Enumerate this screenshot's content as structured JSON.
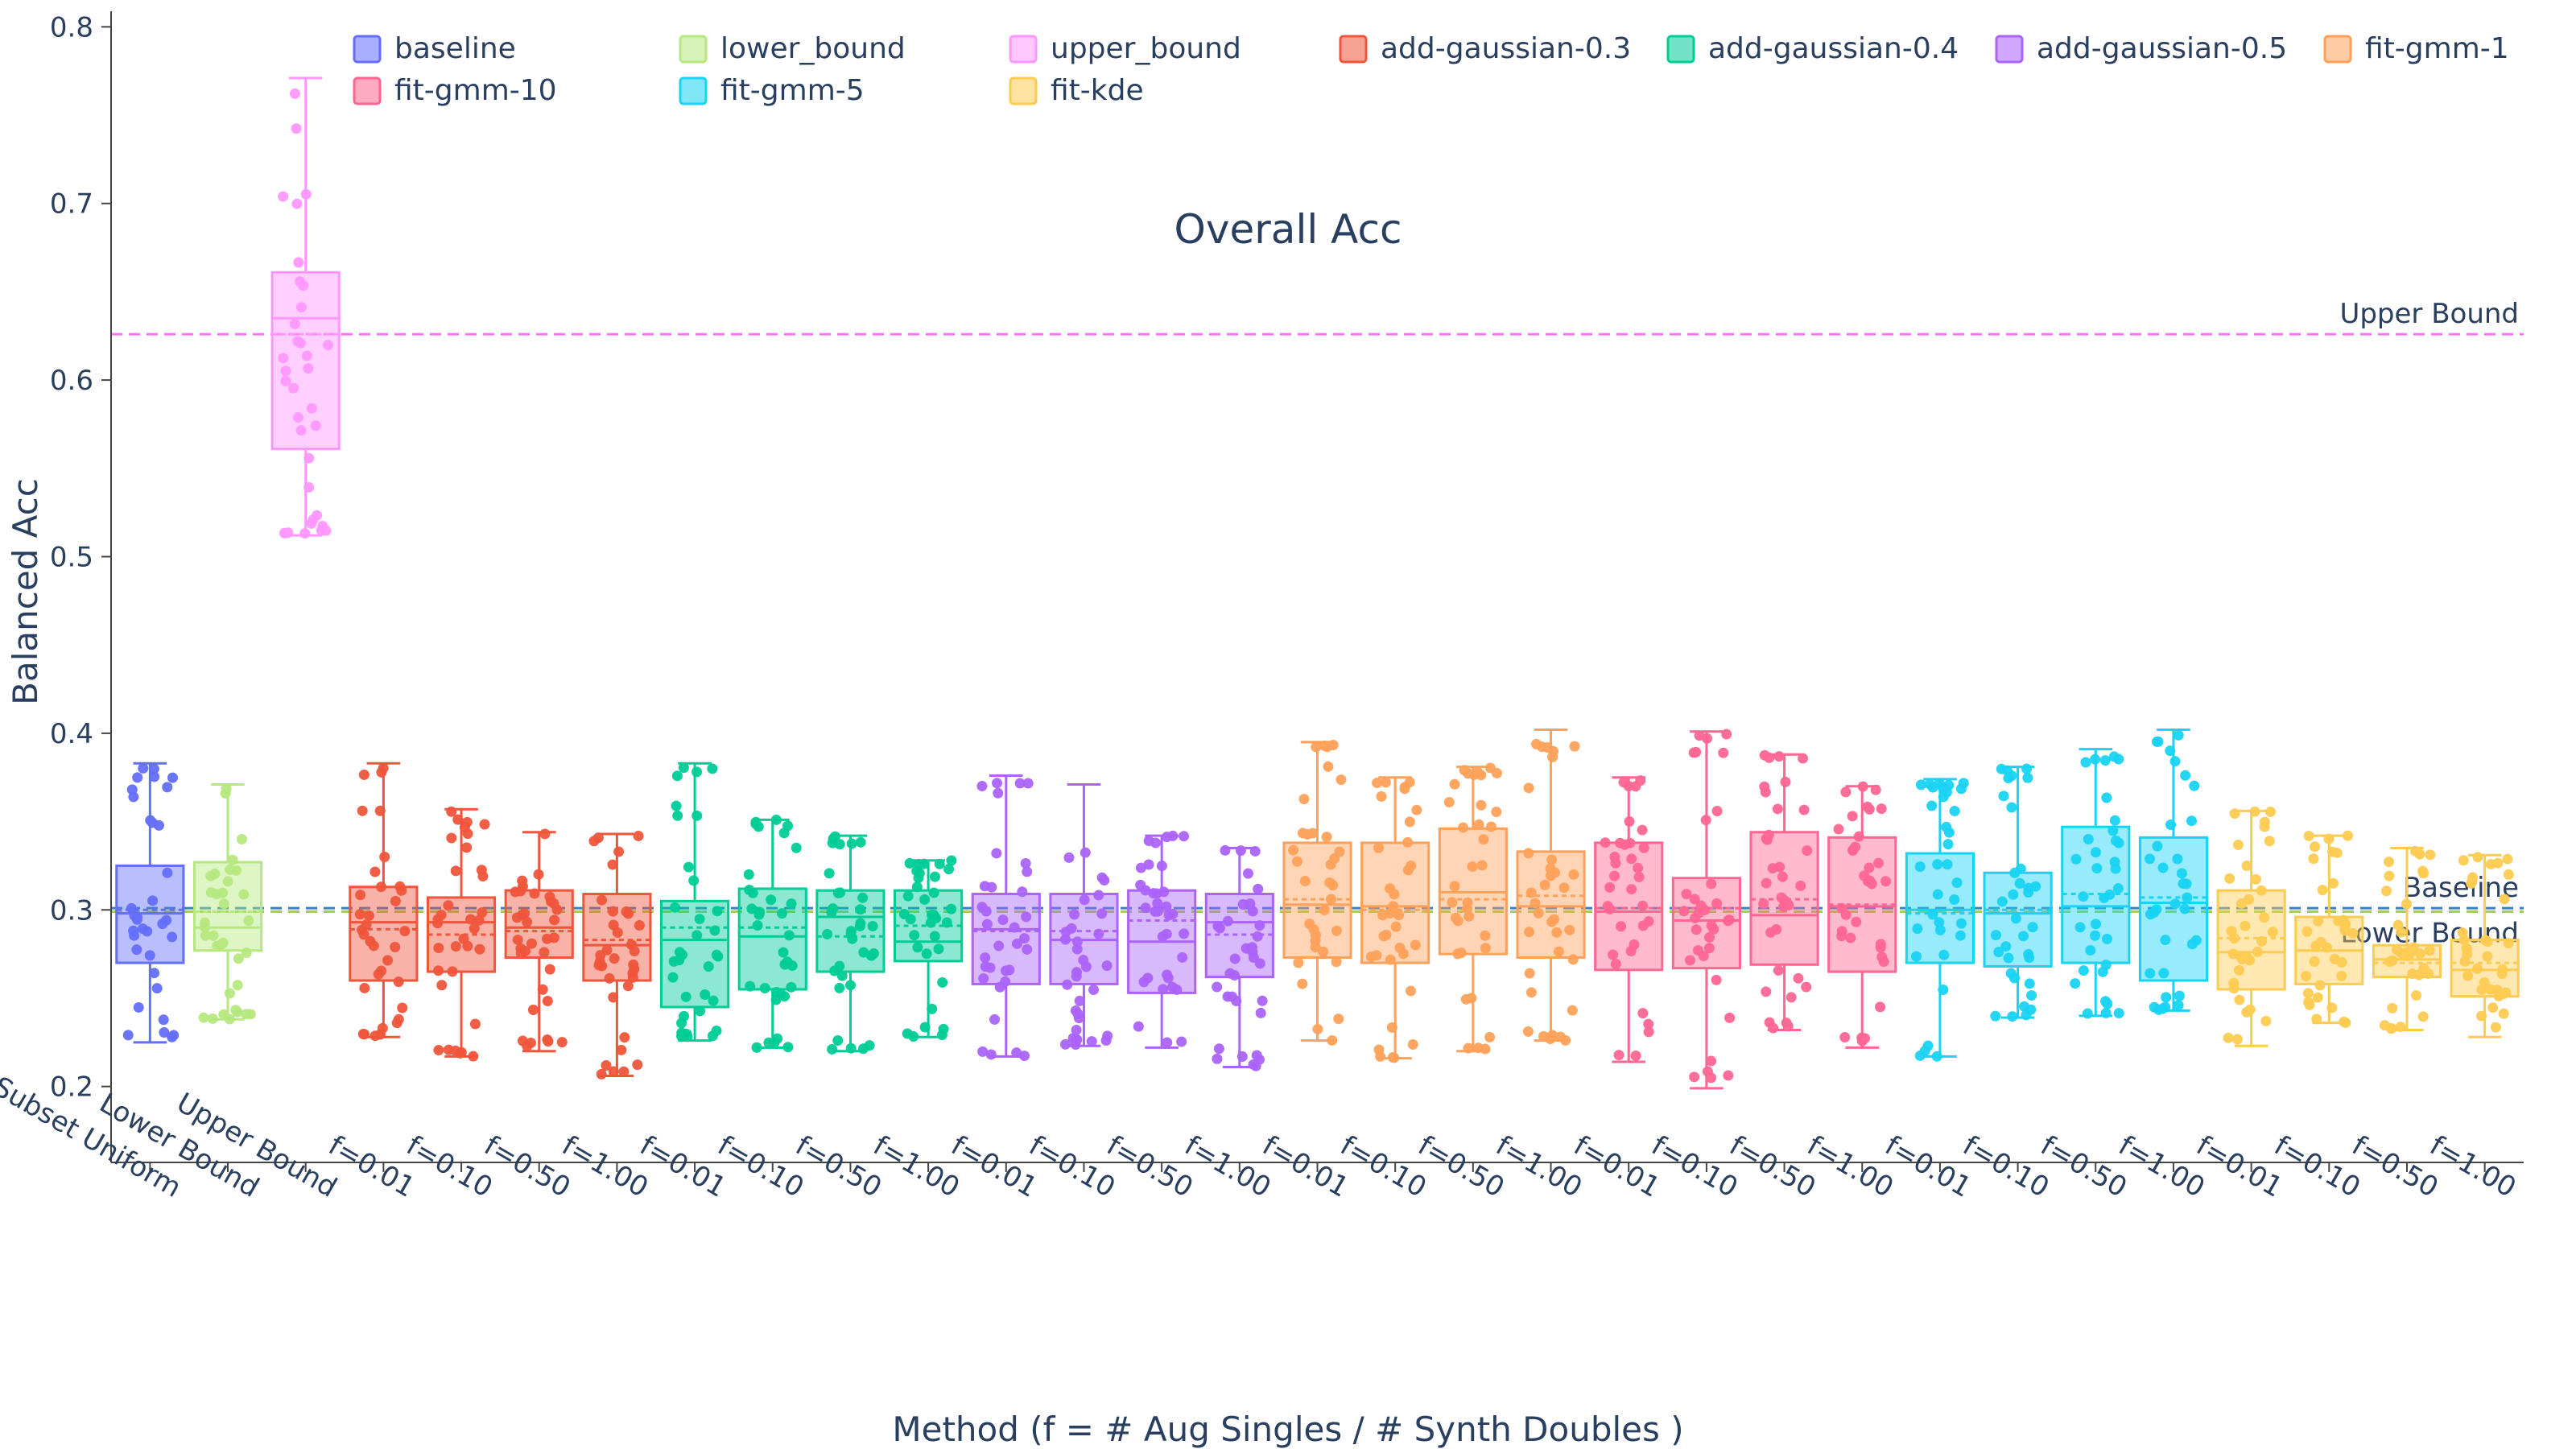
{
  "chart_data": {
    "type": "box",
    "title": "Overall Acc",
    "xlabel": "Method (f = # Aug Singles / # Synth Doubles )",
    "ylabel": "Balanced Acc",
    "ylim": [
      0.157,
      0.807
    ],
    "yticks": [
      0.2,
      0.3,
      0.4,
      0.5,
      0.6,
      0.7,
      0.8
    ],
    "grid": false,
    "legend_position": "top",
    "reference_lines": [
      {
        "label": "Upper Bound",
        "value": 0.626,
        "color": "#ff66ff"
      },
      {
        "label": "Baseline",
        "value": 0.301,
        "color": "#1f77b4"
      },
      {
        "label": "Lower Bound",
        "value": 0.299,
        "color": "#9acd32"
      }
    ],
    "categories": [
      "Baseline - Subset Uniform",
      "Lower Bound",
      "Upper Bound",
      "f=0.01",
      "f=0.10",
      "f=0.50",
      "f=1.00",
      "f=0.01",
      "f=0.10",
      "f=0.50",
      "f=1.00",
      "f=0.01",
      "f=0.10",
      "f=0.50",
      "f=1.00",
      "f=0.01",
      "f=0.10",
      "f=0.50",
      "f=1.00",
      "f=0.01",
      "f=0.10",
      "f=0.50",
      "f=1.00",
      "f=0.01",
      "f=0.10",
      "f=0.50",
      "f=1.00",
      "f=0.01",
      "f=0.10",
      "f=0.50",
      "f=1.00"
    ],
    "legend": [
      {
        "name": "baseline",
        "color": "#636efa"
      },
      {
        "name": "lower_bound",
        "color": "#b6e880"
      },
      {
        "name": "upper_bound",
        "color": "#ff97ff"
      },
      {
        "name": "add-gaussian-0.3",
        "color": "#ef553b"
      },
      {
        "name": "add-gaussian-0.4",
        "color": "#00cc96"
      },
      {
        "name": "add-gaussian-0.5",
        "color": "#ab63fa"
      },
      {
        "name": "fit-gmm-1",
        "color": "#ffa15a"
      },
      {
        "name": "fit-gmm-10",
        "color": "#ff6692"
      },
      {
        "name": "fit-gmm-5",
        "color": "#19d3f3"
      },
      {
        "name": "fit-kde",
        "color": "#fecb52"
      }
    ],
    "boxes": [
      {
        "series": "baseline",
        "min": 0.225,
        "q1": 0.27,
        "median": 0.298,
        "mean": 0.3,
        "q3": 0.325,
        "max": 0.383
      },
      {
        "series": "lower_bound",
        "min": 0.238,
        "q1": 0.277,
        "median": 0.29,
        "mean": 0.299,
        "q3": 0.327,
        "max": 0.371
      },
      {
        "series": "upper_bound",
        "min": 0.512,
        "q1": 0.561,
        "median": 0.635,
        "mean": 0.626,
        "q3": 0.661,
        "max": 0.771
      },
      {
        "series": "add-gaussian-0.3",
        "min": 0.228,
        "q1": 0.26,
        "median": 0.293,
        "mean": 0.289,
        "q3": 0.313,
        "max": 0.383
      },
      {
        "series": "add-gaussian-0.3",
        "min": 0.217,
        "q1": 0.265,
        "median": 0.293,
        "mean": 0.286,
        "q3": 0.307,
        "max": 0.357
      },
      {
        "series": "add-gaussian-0.3",
        "min": 0.22,
        "q1": 0.273,
        "median": 0.29,
        "mean": 0.288,
        "q3": 0.311,
        "max": 0.344
      },
      {
        "series": "add-gaussian-0.3",
        "min": 0.206,
        "q1": 0.26,
        "median": 0.28,
        "mean": 0.283,
        "q3": 0.309,
        "max": 0.343
      },
      {
        "series": "add-gaussian-0.4",
        "min": 0.226,
        "q1": 0.245,
        "median": 0.283,
        "mean": 0.29,
        "q3": 0.305,
        "max": 0.383
      },
      {
        "series": "add-gaussian-0.4",
        "min": 0.222,
        "q1": 0.255,
        "median": 0.285,
        "mean": 0.29,
        "q3": 0.312,
        "max": 0.351
      },
      {
        "series": "add-gaussian-0.4",
        "min": 0.22,
        "q1": 0.265,
        "median": 0.296,
        "mean": 0.285,
        "q3": 0.311,
        "max": 0.342
      },
      {
        "series": "add-gaussian-0.4",
        "min": 0.228,
        "q1": 0.271,
        "median": 0.282,
        "mean": 0.291,
        "q3": 0.311,
        "max": 0.328
      },
      {
        "series": "add-gaussian-0.5",
        "min": 0.217,
        "q1": 0.258,
        "median": 0.289,
        "mean": 0.288,
        "q3": 0.309,
        "max": 0.376
      },
      {
        "series": "add-gaussian-0.5",
        "min": 0.223,
        "q1": 0.258,
        "median": 0.283,
        "mean": 0.288,
        "q3": 0.309,
        "max": 0.371
      },
      {
        "series": "add-gaussian-0.5",
        "min": 0.222,
        "q1": 0.253,
        "median": 0.282,
        "mean": 0.294,
        "q3": 0.311,
        "max": 0.342
      },
      {
        "series": "add-gaussian-0.5",
        "min": 0.211,
        "q1": 0.262,
        "median": 0.293,
        "mean": 0.286,
        "q3": 0.309,
        "max": 0.335
      },
      {
        "series": "fit-gmm-1",
        "min": 0.226,
        "q1": 0.273,
        "median": 0.303,
        "mean": 0.306,
        "q3": 0.338,
        "max": 0.395
      },
      {
        "series": "fit-gmm-1",
        "min": 0.216,
        "q1": 0.27,
        "median": 0.302,
        "mean": 0.3,
        "q3": 0.338,
        "max": 0.375
      },
      {
        "series": "fit-gmm-1",
        "min": 0.22,
        "q1": 0.275,
        "median": 0.31,
        "mean": 0.306,
        "q3": 0.346,
        "max": 0.381
      },
      {
        "series": "fit-gmm-1",
        "min": 0.226,
        "q1": 0.273,
        "median": 0.302,
        "mean": 0.308,
        "q3": 0.333,
        "max": 0.402
      },
      {
        "series": "fit-gmm-10",
        "min": 0.214,
        "q1": 0.266,
        "median": 0.299,
        "mean": 0.301,
        "q3": 0.338,
        "max": 0.375
      },
      {
        "series": "fit-gmm-10",
        "min": 0.199,
        "q1": 0.267,
        "median": 0.294,
        "mean": 0.301,
        "q3": 0.318,
        "max": 0.401
      },
      {
        "series": "fit-gmm-10",
        "min": 0.232,
        "q1": 0.269,
        "median": 0.297,
        "mean": 0.306,
        "q3": 0.344,
        "max": 0.388
      },
      {
        "series": "fit-gmm-10",
        "min": 0.222,
        "q1": 0.265,
        "median": 0.302,
        "mean": 0.303,
        "q3": 0.341,
        "max": 0.37
      },
      {
        "series": "fit-gmm-5",
        "min": 0.217,
        "q1": 0.27,
        "median": 0.3,
        "mean": 0.298,
        "q3": 0.332,
        "max": 0.374
      },
      {
        "series": "fit-gmm-5",
        "min": 0.239,
        "q1": 0.268,
        "median": 0.298,
        "mean": 0.3,
        "q3": 0.321,
        "max": 0.381
      },
      {
        "series": "fit-gmm-5",
        "min": 0.24,
        "q1": 0.27,
        "median": 0.302,
        "mean": 0.309,
        "q3": 0.347,
        "max": 0.391
      },
      {
        "series": "fit-gmm-5",
        "min": 0.243,
        "q1": 0.26,
        "median": 0.304,
        "mean": 0.307,
        "q3": 0.341,
        "max": 0.402
      },
      {
        "series": "fit-kde",
        "min": 0.223,
        "q1": 0.255,
        "median": 0.276,
        "mean": 0.284,
        "q3": 0.311,
        "max": 0.356
      },
      {
        "series": "fit-kde",
        "min": 0.236,
        "q1": 0.258,
        "median": 0.277,
        "mean": 0.277,
        "q3": 0.296,
        "max": 0.342
      },
      {
        "series": "fit-kde",
        "min": 0.232,
        "q1": 0.262,
        "median": 0.272,
        "mean": 0.27,
        "q3": 0.28,
        "max": 0.335
      },
      {
        "series": "fit-kde",
        "min": 0.228,
        "q1": 0.251,
        "median": 0.266,
        "mean": 0.27,
        "q3": 0.283,
        "max": 0.331
      }
    ]
  }
}
